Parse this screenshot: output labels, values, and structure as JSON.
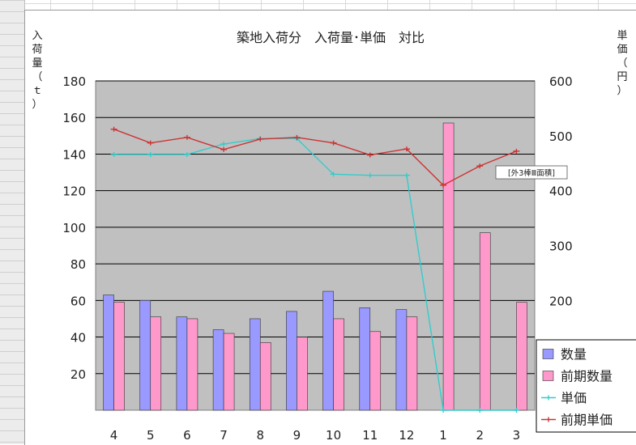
{
  "chart_data": {
    "type": "bar",
    "title": "築地入荷分　入荷量･単価　対比",
    "ylabel": "入荷量（ｔ）",
    "y2label": "単価（円）",
    "categories": [
      "4",
      "5",
      "6",
      "7",
      "8",
      "9",
      "10",
      "11",
      "12",
      "1",
      "2",
      "3"
    ],
    "ylim": [
      0,
      180
    ],
    "y2lim": [
      0,
      600
    ],
    "yticks": [
      "20",
      "40",
      "60",
      "80",
      "100",
      "120",
      "140",
      "160",
      "180"
    ],
    "y2ticks": [
      "200",
      "300",
      "400",
      "500",
      "600"
    ],
    "series": [
      {
        "name": "数量",
        "type": "bar",
        "axis": "left",
        "color": "#9999ff",
        "values": [
          63,
          60,
          51,
          44,
          50,
          54,
          65,
          56,
          55,
          null,
          null,
          null
        ]
      },
      {
        "name": "前期数量",
        "type": "bar",
        "axis": "left",
        "color": "#ff99cc",
        "values": [
          59,
          51,
          50,
          42,
          37,
          40,
          50,
          43,
          51,
          157,
          97,
          59
        ]
      },
      {
        "name": "単価",
        "type": "line",
        "axis": "right",
        "color": "#33cccc",
        "values": [
          466,
          466,
          466,
          485,
          495,
          495,
          430,
          428,
          428,
          0,
          0,
          0
        ]
      },
      {
        "name": "前期単価",
        "type": "line",
        "axis": "right",
        "color": "#cc3333",
        "values": [
          512,
          487,
          497,
          475,
          494,
          497,
          487,
          465,
          476,
          410,
          445,
          472
        ]
      }
    ],
    "annotation": "[外3棒Ⅲ面積]",
    "grid": true,
    "plot_background": "#c0c0c0",
    "legend_position": "bottom-right"
  }
}
